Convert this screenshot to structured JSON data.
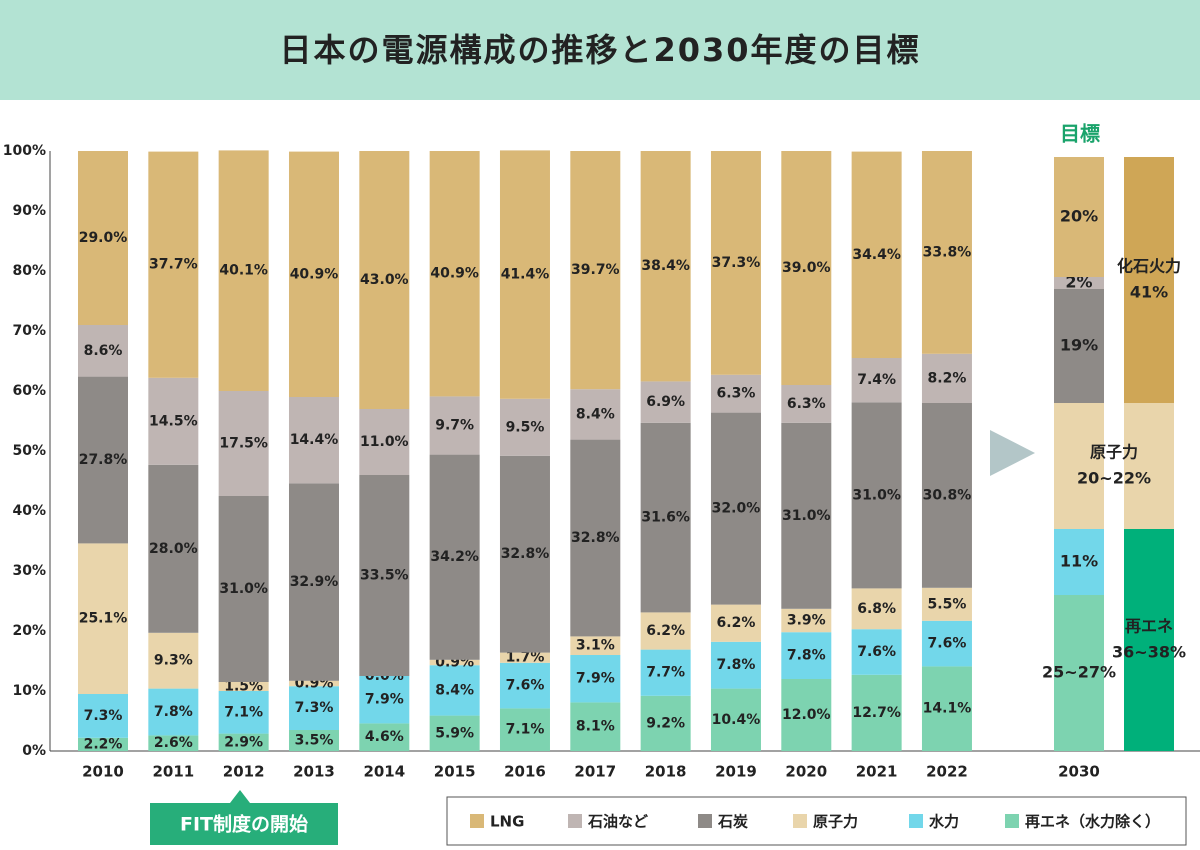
{
  "chart_data": [
    {
      "type": "bar",
      "stacked": true,
      "title": "日本の電源構成の推移と2030年度の目標",
      "categories": [
        "2010",
        "2011",
        "2012",
        "2013",
        "2014",
        "2015",
        "2016",
        "2017",
        "2018",
        "2019",
        "2020",
        "2021",
        "2022"
      ],
      "ylim": [
        0,
        100
      ],
      "yticks": [
        {
          "value": 0,
          "label": "0%"
        },
        {
          "value": 10,
          "label": "10%"
        },
        {
          "value": 20,
          "label": "20%"
        },
        {
          "value": 30,
          "label": "30%"
        },
        {
          "value": 40,
          "label": "40%"
        },
        {
          "value": 50,
          "label": "50%"
        },
        {
          "value": 60,
          "label": "60%"
        },
        {
          "value": 70,
          "label": "70%"
        },
        {
          "value": 80,
          "label": "80%"
        },
        {
          "value": 90,
          "label": "90%"
        },
        {
          "value": 100,
          "label": "100%"
        }
      ],
      "grid": false,
      "legend": "bottom-right",
      "annotation": "FIT制度の開始",
      "series": [
        {
          "name": "再エネ（水力除く）",
          "color": "#7dd3b0",
          "values": [
            2.2,
            2.6,
            2.9,
            3.5,
            4.6,
            5.9,
            7.1,
            8.1,
            9.2,
            10.4,
            12.0,
            12.7,
            14.1
          ],
          "value_labels": [
            "2.2%",
            "2.6%",
            "2.9%",
            "3.5%",
            "4.6%",
            "5.9%",
            "7.1%",
            "8.1%",
            "9.2%",
            "10.4%",
            "12.0%",
            "12.7%",
            "14.1%"
          ]
        },
        {
          "name": "水力",
          "color": "#72d7ea",
          "values": [
            7.3,
            7.8,
            7.1,
            7.3,
            7.9,
            8.4,
            7.6,
            7.9,
            7.7,
            7.8,
            7.8,
            7.6,
            7.6
          ],
          "value_labels": [
            "7.3%",
            "7.8%",
            "7.1%",
            "7.3%",
            "7.9%",
            "8.4%",
            "7.6%",
            "7.9%",
            "7.7%",
            "7.8%",
            "7.8%",
            "7.6%",
            "7.6%"
          ]
        },
        {
          "name": "原子力",
          "color": "#e9d5ab",
          "values": [
            25.1,
            9.3,
            1.5,
            0.9,
            0.0,
            0.9,
            1.7,
            3.1,
            6.2,
            6.2,
            3.9,
            6.8,
            5.5
          ],
          "value_labels": [
            "25.1%",
            "9.3%",
            "1.5%",
            "0.9%",
            "0.0%",
            "0.9%",
            "1.7%",
            "3.1%",
            "6.2%",
            "6.2%",
            "3.9%",
            "6.8%",
            "5.5%"
          ]
        },
        {
          "name": "石炭",
          "color": "#8e8a87",
          "values": [
            27.8,
            28.0,
            31.0,
            32.9,
            33.5,
            34.2,
            32.8,
            32.8,
            31.6,
            32.0,
            31.0,
            31.0,
            30.8
          ],
          "value_labels": [
            "27.8%",
            "28.0%",
            "31.0%",
            "32.9%",
            "33.5%",
            "34.2%",
            "32.8%",
            "32.8%",
            "31.6%",
            "32.0%",
            "31.0%",
            "31.0%",
            "30.8%"
          ]
        },
        {
          "name": "石油など",
          "color": "#bfb5b3",
          "values": [
            8.6,
            14.5,
            17.5,
            14.4,
            11.0,
            9.7,
            9.5,
            8.4,
            6.9,
            6.3,
            6.3,
            7.4,
            8.2
          ],
          "value_labels": [
            "8.6%",
            "14.5%",
            "17.5%",
            "14.4%",
            "11.0%",
            "9.7%",
            "9.5%",
            "8.4%",
            "6.9%",
            "6.3%",
            "6.3%",
            "7.4%",
            "8.2%"
          ]
        },
        {
          "name": "LNG",
          "color": "#d9b877",
          "values": [
            29.0,
            37.7,
            40.1,
            40.9,
            43.0,
            40.9,
            41.4,
            39.7,
            38.4,
            37.3,
            39.0,
            34.4,
            33.8
          ],
          "value_labels": [
            "29.0%",
            "37.7%",
            "40.1%",
            "40.9%",
            "43.0%",
            "40.9%",
            "41.4%",
            "39.7%",
            "38.4%",
            "37.3%",
            "39.0%",
            "34.4%",
            "33.8%"
          ]
        }
      ]
    },
    {
      "type": "bar",
      "stacked": true,
      "title": "目標",
      "categories": [
        "2030",
        null
      ],
      "ylim": [
        0,
        100
      ],
      "bars": [
        {
          "segments": [
            {
              "value": 26,
              "label": "25~27%",
              "color": "#7dd3b0"
            },
            {
              "value": 11,
              "label": "11%",
              "color": "#72d7ea"
            },
            {
              "value": 21,
              "color": "#e9d5ab"
            },
            {
              "value": 19,
              "label": "19%",
              "color": "#8e8a87"
            },
            {
              "value": 2,
              "label": "2%",
              "color": "#bfb5b3"
            },
            {
              "value": 20,
              "label": "20%",
              "color": "#d9b877"
            }
          ]
        },
        {
          "segments": [
            {
              "name": "再エネ",
              "value": 37,
              "label": "36~38%",
              "color": "#00b07a"
            },
            {
              "name": "原子力",
              "value": 21,
              "label": "20~22%",
              "color": "#e9d5ab"
            },
            {
              "name": "化石火力",
              "value": 41,
              "label": "41%",
              "color": "#cfa656"
            }
          ]
        }
      ]
    }
  ]
}
